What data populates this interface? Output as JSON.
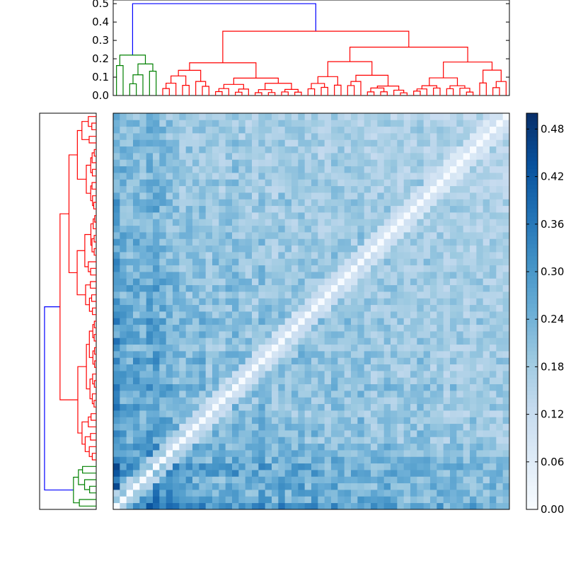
{
  "chart_data": {
    "type": "heatmap",
    "description_note": "",
    "matrix_size": 60,
    "colormap": "Blues",
    "value_range": [
      0.0,
      0.5
    ],
    "top_dendrogram": {
      "yticks": [
        "0.0",
        "0.1",
        "0.2",
        "0.3",
        "0.4",
        "0.5"
      ],
      "ylim": [
        0.0,
        0.52
      ],
      "root_height": 0.5,
      "colors": {
        "root": "#0000ff",
        "cluster_a": "#008000",
        "cluster_b": "#ff0000"
      }
    },
    "left_dendrogram": {
      "orientation": "left",
      "colors": {
        "root": "#0000ff",
        "cluster_a": "#008000",
        "cluster_b": "#ff0000"
      }
    },
    "colorbar": {
      "ticks": [
        "0.00",
        "0.06",
        "0.12",
        "0.18",
        "0.24",
        "0.30",
        "0.36",
        "0.42",
        "0.48"
      ],
      "tick_values": [
        0.0,
        0.06,
        0.12,
        0.18,
        0.24,
        0.3,
        0.36,
        0.42,
        0.48
      ],
      "range": [
        0.0,
        0.5
      ]
    },
    "leaf_groups": {
      "green": 7,
      "red": 53
    },
    "row_profile": [
      0.43,
      0.33,
      0.3,
      0.32,
      0.28,
      0.35,
      0.34,
      0.3,
      0.28,
      0.26,
      0.22,
      0.24,
      0.22,
      0.24,
      0.2,
      0.22,
      0.2,
      0.22,
      0.24,
      0.21,
      0.2,
      0.19,
      0.23,
      0.21,
      0.18,
      0.22,
      0.2,
      0.19,
      0.22,
      0.19,
      0.2,
      0.19,
      0.18,
      0.21,
      0.2,
      0.19,
      0.19,
      0.2,
      0.18,
      0.17,
      0.18,
      0.19,
      0.17,
      0.17,
      0.16,
      0.18,
      0.19,
      0.17,
      0.16,
      0.17,
      0.15,
      0.17,
      0.16,
      0.15,
      0.16,
      0.16,
      0.15,
      0.16,
      0.15,
      0.14
    ]
  }
}
